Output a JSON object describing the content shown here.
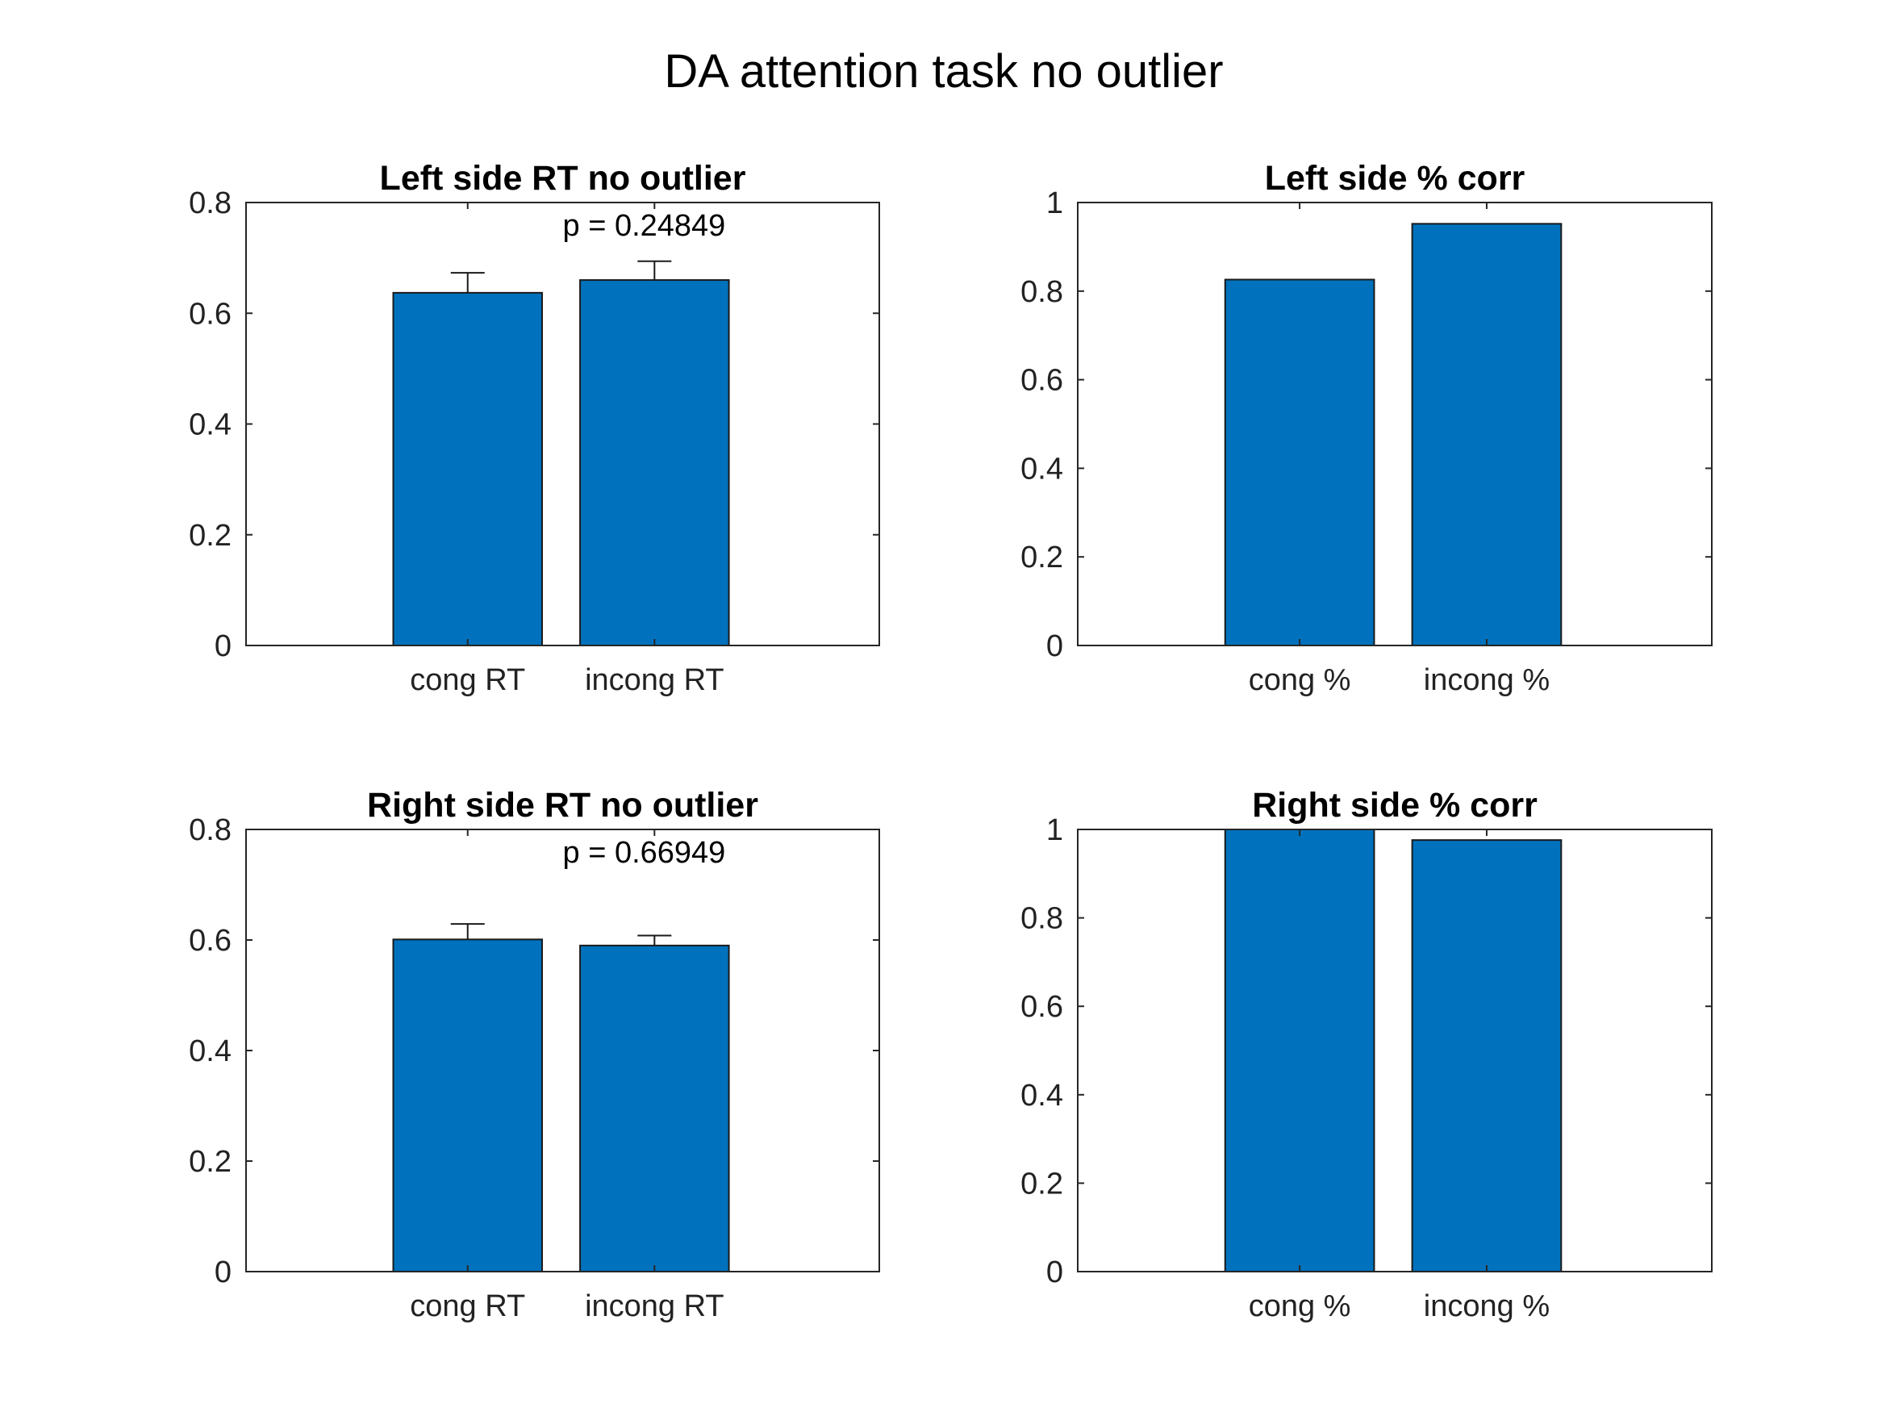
{
  "figure": {
    "title": "DA attention task no outlier",
    "bar_color": "#0072BD"
  },
  "chart_data": [
    {
      "type": "bar",
      "title": "Left side RT no outlier",
      "categories": [
        "cong RT",
        "incong RT"
      ],
      "values": [
        0.637,
        0.66
      ],
      "error_upper": [
        0.036,
        0.034
      ],
      "ylim": [
        0,
        0.8
      ],
      "yticks": [
        0,
        0.2,
        0.4,
        0.6,
        0.8
      ],
      "ytick_labels": [
        "0",
        "0.2",
        "0.4",
        "0.6",
        "0.8"
      ],
      "annotation": "p = 0.24849",
      "grid": false
    },
    {
      "type": "bar",
      "title": "Left side % corr",
      "categories": [
        "cong %",
        "incong %"
      ],
      "values": [
        0.826,
        0.952
      ],
      "ylim": [
        0,
        1
      ],
      "yticks": [
        0,
        0.2,
        0.4,
        0.6,
        0.8,
        1
      ],
      "ytick_labels": [
        "0",
        "0.2",
        "0.4",
        "0.6",
        "0.8",
        "1"
      ],
      "grid": false
    },
    {
      "type": "bar",
      "title": "Right side RT no outlier",
      "categories": [
        "cong RT",
        "incong RT"
      ],
      "values": [
        0.601,
        0.59
      ],
      "error_upper": [
        0.028,
        0.018
      ],
      "ylim": [
        0,
        0.8
      ],
      "yticks": [
        0,
        0.2,
        0.4,
        0.6,
        0.8
      ],
      "ytick_labels": [
        "0",
        "0.2",
        "0.4",
        "0.6",
        "0.8"
      ],
      "annotation": "p = 0.66949",
      "grid": false
    },
    {
      "type": "bar",
      "title": "Right side % corr",
      "categories": [
        "cong %",
        "incong %"
      ],
      "values": [
        1.0,
        0.976
      ],
      "ylim": [
        0,
        1
      ],
      "yticks": [
        0,
        0.2,
        0.4,
        0.6,
        0.8,
        1
      ],
      "ytick_labels": [
        "0",
        "0.2",
        "0.4",
        "0.6",
        "0.8",
        "1"
      ],
      "grid": false
    }
  ]
}
